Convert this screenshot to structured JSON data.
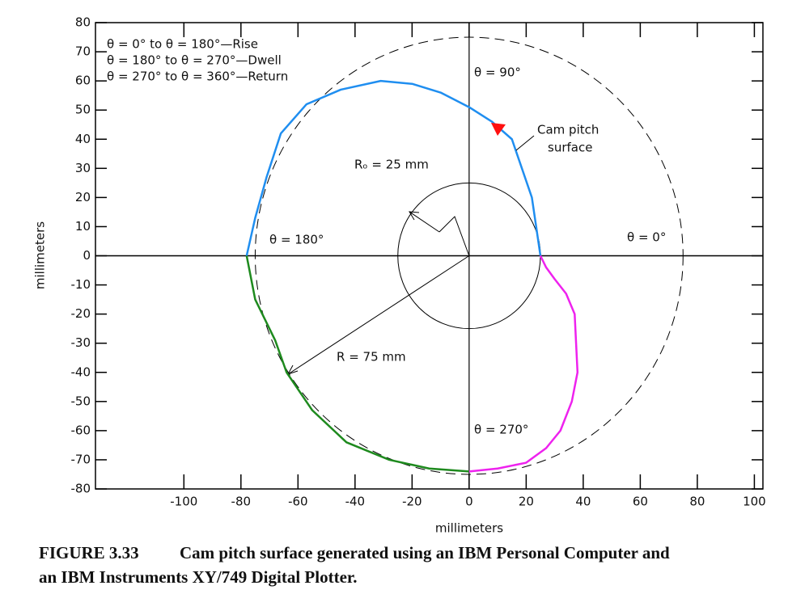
{
  "chart_data": {
    "type": "line",
    "xlabel": "millimeters",
    "ylabel": "millimeters",
    "xlim": [
      -131,
      103
    ],
    "ylim": [
      -80,
      80
    ],
    "xticks": [
      -100,
      -80,
      -60,
      -40,
      -20,
      0,
      20,
      40,
      60,
      80,
      100
    ],
    "yticks": [
      -80,
      -70,
      -60,
      -50,
      -40,
      -30,
      -20,
      -10,
      0,
      10,
      20,
      30,
      40,
      50,
      60,
      70,
      80
    ],
    "series": [
      {
        "name": "θ = 0° to θ = 180°—Rise",
        "color": "#1f8ef0",
        "x": [
          25,
          22,
          15,
          8,
          0,
          -10,
          -20,
          -31,
          -45,
          -57,
          -66,
          -71,
          -75,
          -78
        ],
        "values": [
          0,
          20,
          40,
          46,
          51,
          56,
          59,
          60,
          57,
          52,
          42,
          27,
          13,
          0
        ]
      },
      {
        "name": "θ = 180° to θ = 270°—Dwell",
        "color": "#1e8a1e",
        "x": [
          -78,
          -75,
          -68,
          -64,
          -55,
          -43,
          -28,
          -14,
          0
        ],
        "values": [
          0,
          -15,
          -29,
          -40,
          -53,
          -64,
          -70,
          -73,
          -74
        ]
      },
      {
        "name": "θ = 270° to θ = 360°—Return",
        "color": "#ee22ee",
        "x": [
          0,
          10,
          20,
          27,
          32,
          36,
          38,
          37,
          34,
          30,
          27,
          25
        ],
        "values": [
          -74,
          -73,
          -71,
          -66,
          -60,
          -50,
          -40,
          -20,
          -13,
          -8,
          -4,
          0
        ]
      }
    ],
    "circles": [
      {
        "label": "Rₒ = 25 mm",
        "radius": 25
      },
      {
        "label": "R = 75 mm",
        "radius": 75
      }
    ],
    "annotations": [
      "θ = 90°",
      "θ = 180°",
      "θ = 0°",
      "θ = 270°",
      "Cam pitch",
      "surface"
    ],
    "caption": {
      "label": "FIGURE 3.33",
      "text": "Cam pitch surface generated using an IBM Personal Computer and",
      "text2": "an IBM Instruments XY/749 Digital Plotter."
    }
  }
}
